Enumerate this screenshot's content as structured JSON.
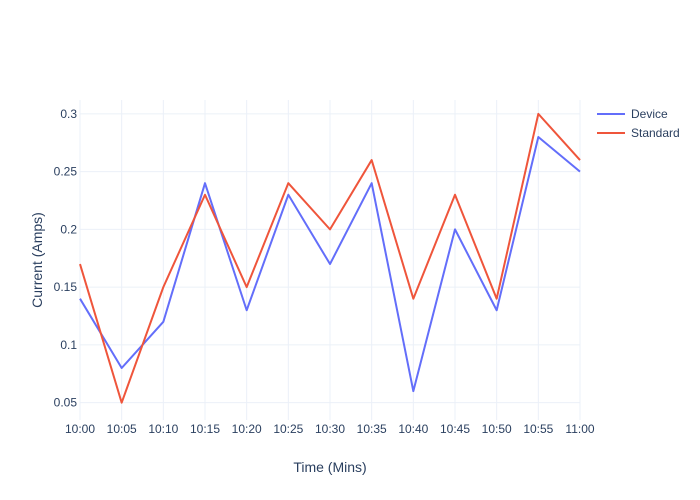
{
  "chart_data": {
    "type": "line",
    "title": "",
    "xlabel": "Time (Mins)",
    "ylabel": "Current (Amps)",
    "x": [
      "10:00",
      "10:05",
      "10:10",
      "10:15",
      "10:20",
      "10:25",
      "10:30",
      "10:35",
      "10:40",
      "10:45",
      "10:50",
      "10:55",
      "11:00"
    ],
    "ylim": [
      0.035,
      0.312
    ],
    "yticks": [
      0.05,
      0.1,
      0.15,
      0.2,
      0.25,
      0.3
    ],
    "ytick_labels": [
      "0.05",
      "0.1",
      "0.15",
      "0.2",
      "0.25",
      "0.3"
    ],
    "grid": true,
    "legend_position": "top-right",
    "series": [
      {
        "name": "Device",
        "color": "#636efa",
        "values": [
          0.14,
          0.08,
          0.12,
          0.24,
          0.13,
          0.23,
          0.17,
          0.24,
          0.06,
          0.2,
          0.13,
          0.28,
          0.25
        ]
      },
      {
        "name": "Standard",
        "color": "#ef553b",
        "values": [
          0.17,
          0.05,
          0.15,
          0.23,
          0.15,
          0.24,
          0.2,
          0.26,
          0.14,
          0.23,
          0.14,
          0.3,
          0.26
        ]
      }
    ]
  }
}
